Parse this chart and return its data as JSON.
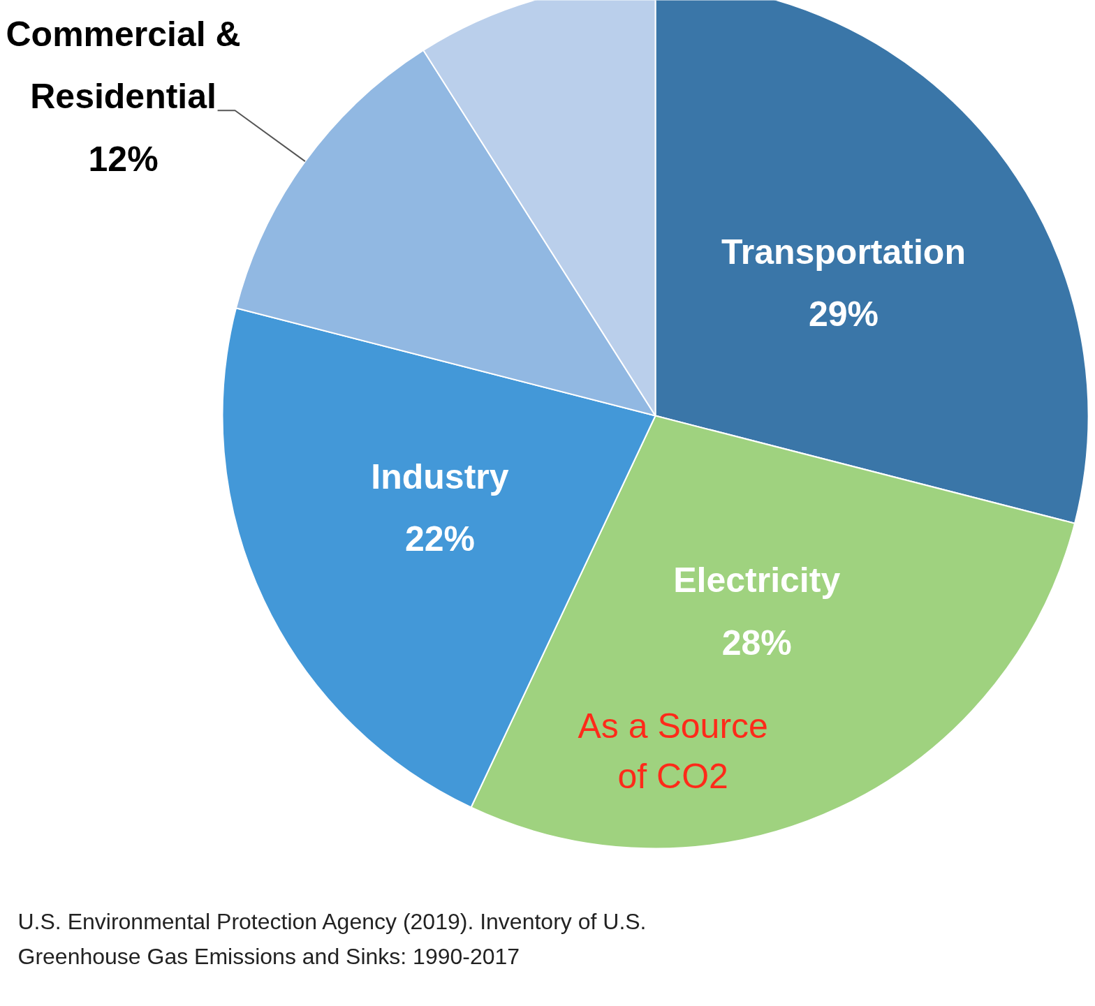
{
  "chart_data": {
    "type": "pie",
    "categories": [
      "Transportation",
      "Electricity",
      "Industry",
      "Commercial &\nResidential",
      null
    ],
    "values": [
      29,
      28,
      22,
      12,
      9
    ],
    "value_labels": [
      "29%",
      "28%",
      "22%",
      "12%",
      null
    ],
    "colors": [
      "#3a76a8",
      "#9fd27f",
      "#4398d8",
      "#91b8e2",
      "#bacfeb"
    ],
    "annotations": [
      {
        "text": "As a Source\nof CO2",
        "x": "Electricity"
      },
      "U.S. Environmental Protection Agency (2019). Inventory of U.S.\nGreenhouse Gas Emissions and Sinks: 1990-2017"
    ],
    "legend": false
  }
}
